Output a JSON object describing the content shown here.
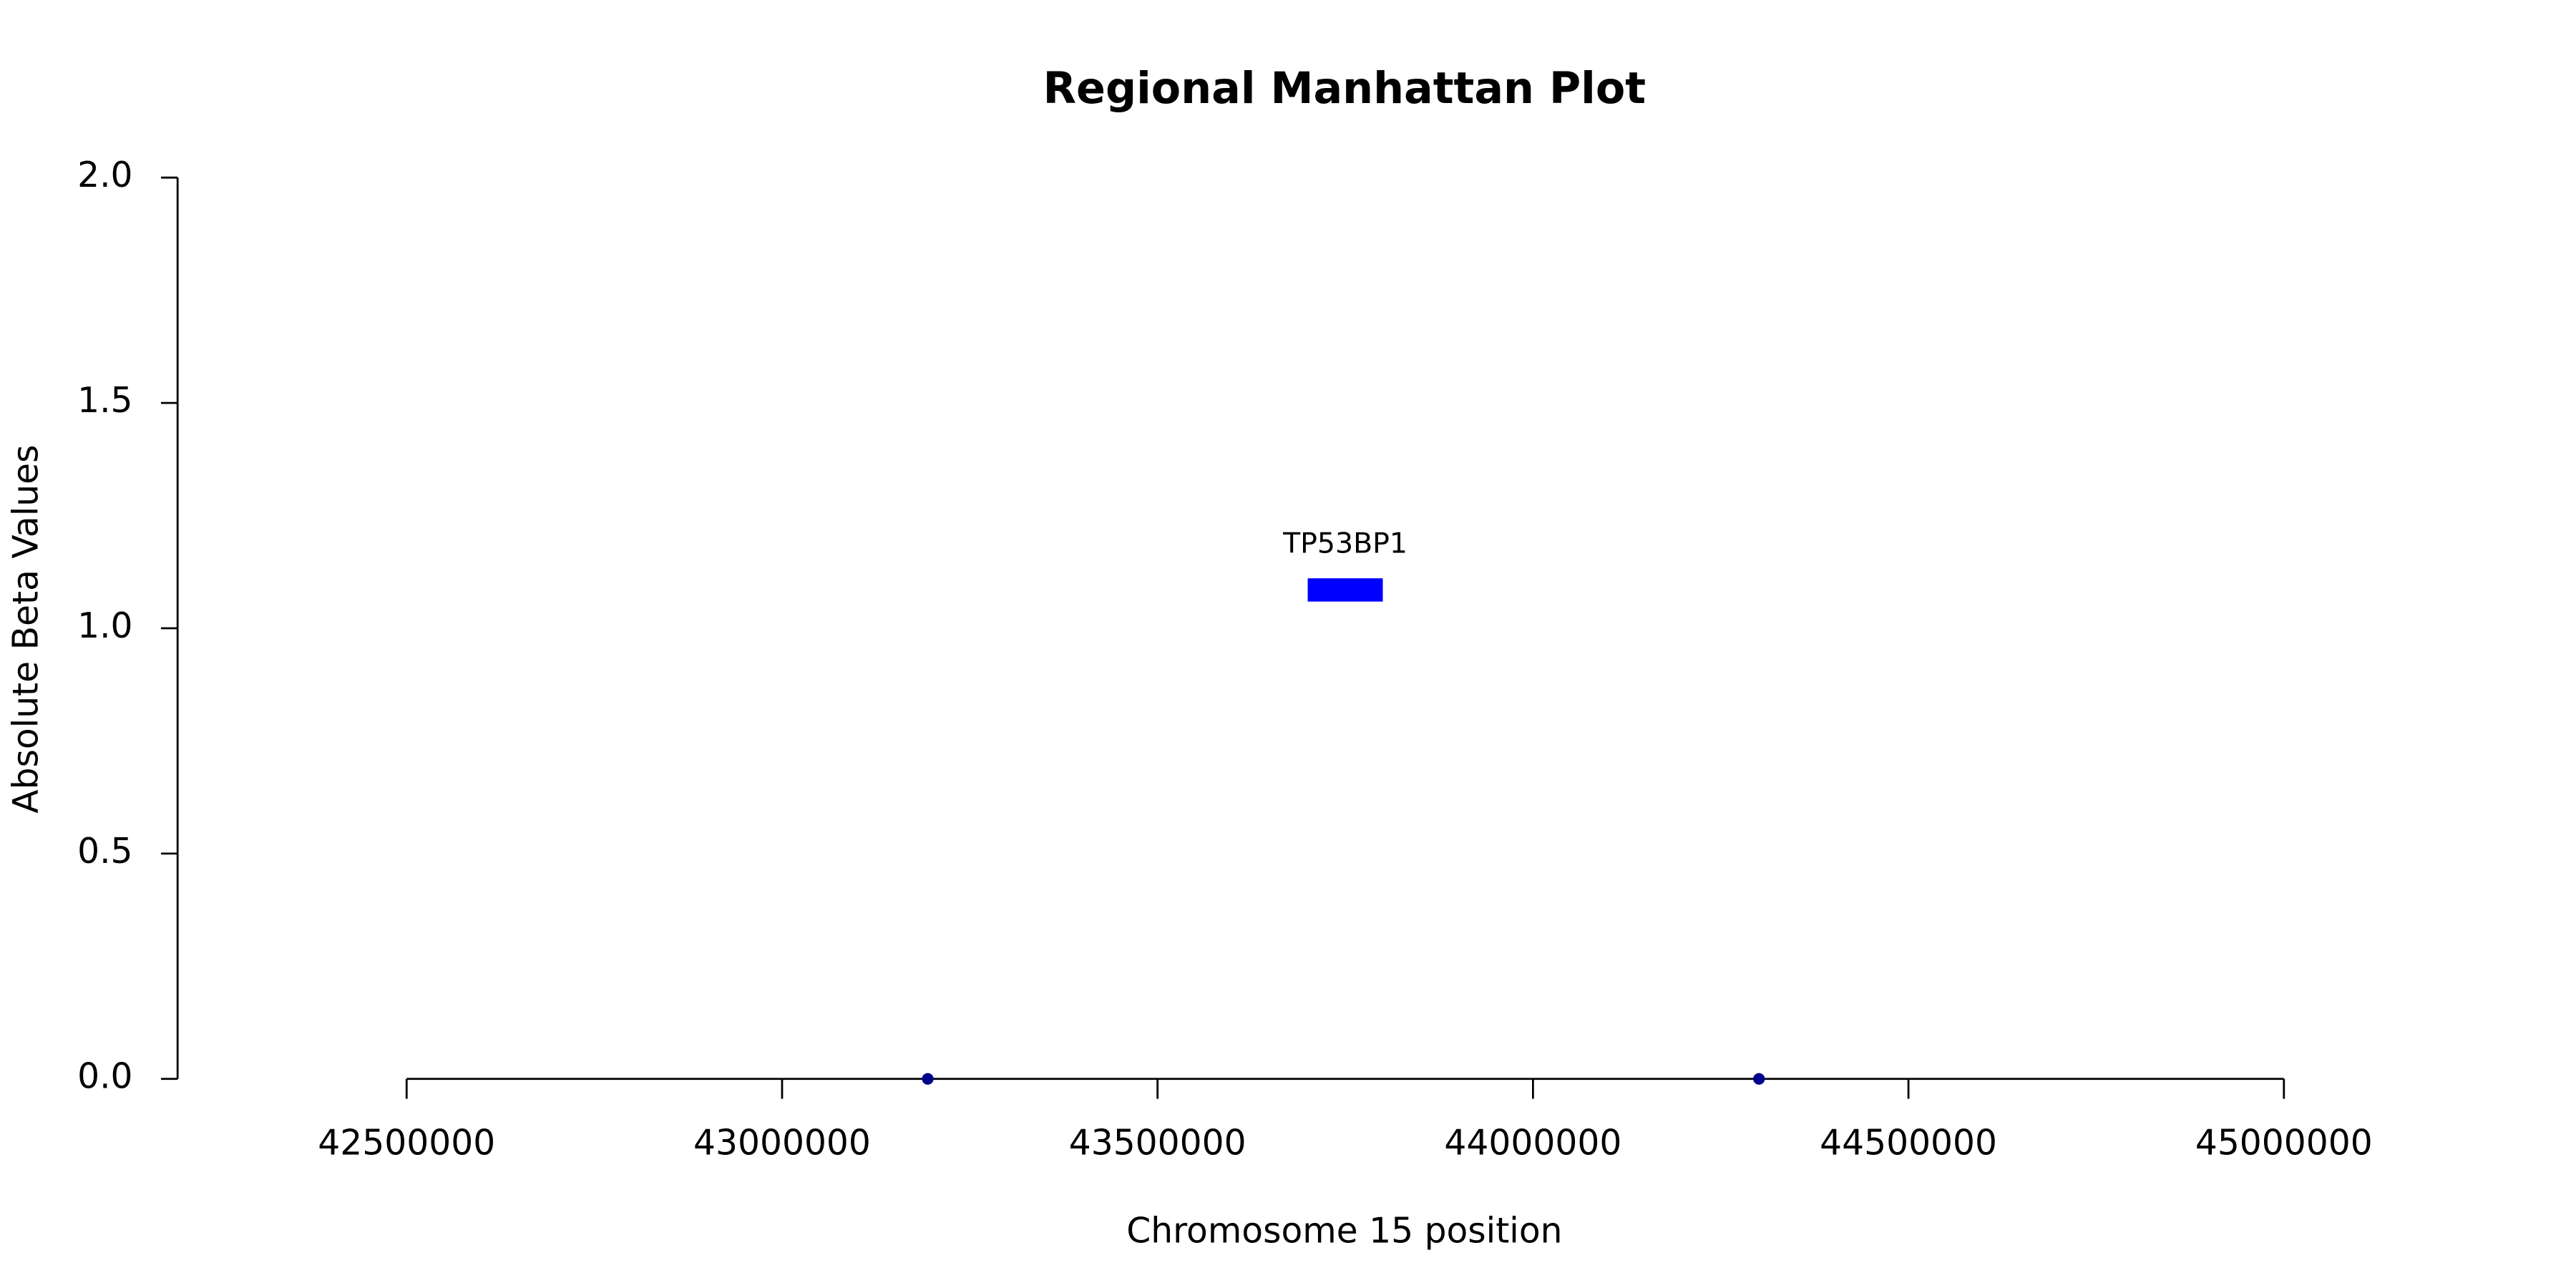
{
  "chart_data": {
    "type": "scatter",
    "title": "Regional Manhattan Plot",
    "x_label": "Chromosome 15 position",
    "y_label": "Absolute Beta Values",
    "x": [
      43194000,
      44301000
    ],
    "values": [
      0,
      0
    ],
    "color": "#00008b",
    "genes": [
      {
        "name": "TP53BP1",
        "start": 43700000,
        "end": 43800000,
        "y": 1.085,
        "color": "#0000ff"
      }
    ],
    "xlim": [
      42195000,
      45305000
    ],
    "ylim": [
      0,
      2
    ],
    "xticks": [
      42500000,
      43000000,
      43500000,
      44000000,
      44500000,
      45000000
    ],
    "yticks": [
      {
        "value": 0,
        "label": "0.0"
      },
      {
        "value": 0.5,
        "label": "0.5"
      },
      {
        "value": 1,
        "label": "1.0"
      },
      {
        "value": 1.5,
        "label": "1.5"
      },
      {
        "value": 2,
        "label": "2.0"
      }
    ],
    "grid": false
  }
}
